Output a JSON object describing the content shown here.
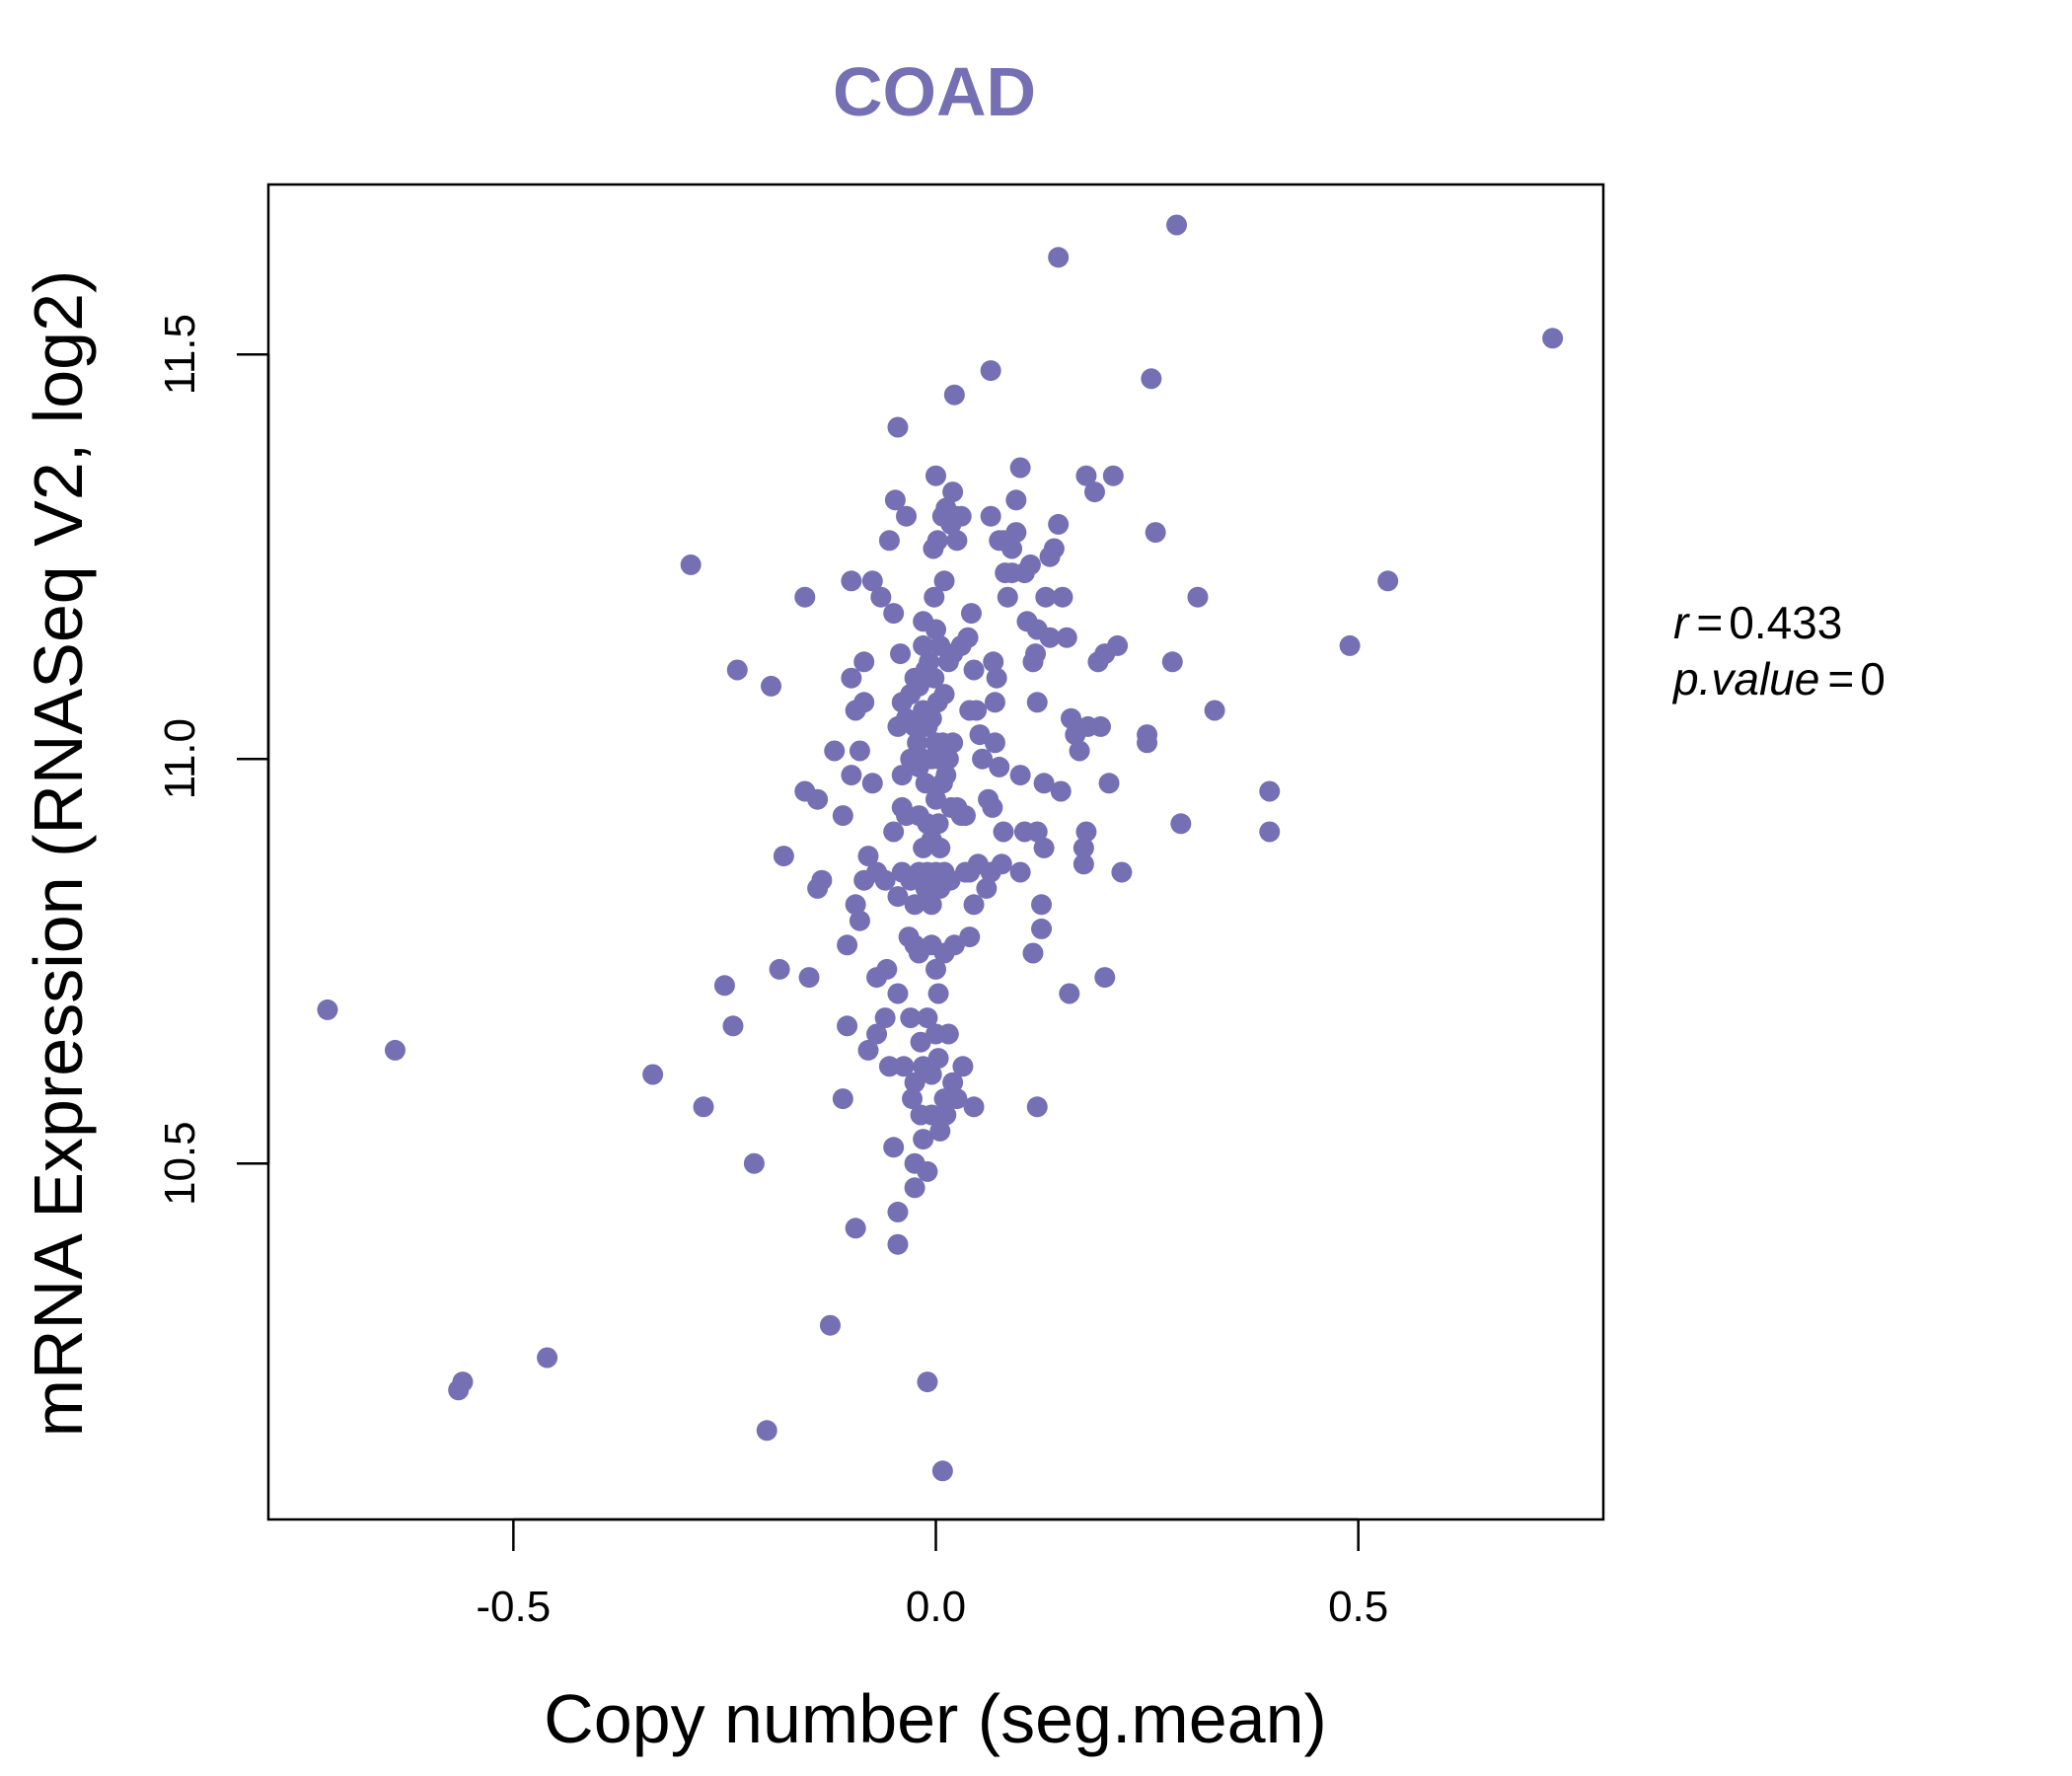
{
  "chart_data": {
    "type": "scatter",
    "title": "COAD",
    "xlabel": "Copy number (seg.mean)",
    "ylabel": "mRNA Expression (RNASeq V2, log2)",
    "xlim": [
      -0.79,
      0.79
    ],
    "ylim": [
      10.06,
      11.71
    ],
    "xticks": [
      -0.5,
      0.0,
      0.5
    ],
    "xtick_labels": [
      "-0.5",
      "0.0",
      "0.5"
    ],
    "yticks": [
      10.5,
      11.0,
      11.5
    ],
    "ytick_labels": [
      "10.5",
      "11.0",
      "11.5"
    ],
    "grid": false,
    "colors": {
      "point": "#7570b3",
      "title": "#7570b3"
    },
    "stats": {
      "r_label": "r",
      "r_value": "0.433",
      "p_label": "p.value",
      "p_value": "0"
    },
    "points": [
      [
        -0.72,
        10.69
      ],
      [
        -0.64,
        10.64
      ],
      [
        -0.565,
        10.22
      ],
      [
        -0.56,
        10.23
      ],
      [
        -0.46,
        10.26
      ],
      [
        -0.335,
        10.61
      ],
      [
        -0.29,
        11.24
      ],
      [
        -0.275,
        10.57
      ],
      [
        -0.25,
        10.72
      ],
      [
        -0.235,
        11.11
      ],
      [
        -0.24,
        10.67
      ],
      [
        -0.215,
        10.5
      ],
      [
        -0.2,
        10.17
      ],
      [
        -0.195,
        11.09
      ],
      [
        -0.18,
        10.88
      ],
      [
        -0.185,
        10.74
      ],
      [
        -0.155,
        11.2
      ],
      [
        -0.155,
        10.96
      ],
      [
        -0.15,
        10.73
      ],
      [
        -0.14,
        10.95
      ],
      [
        -0.14,
        10.84
      ],
      [
        -0.135,
        10.85
      ],
      [
        -0.125,
        10.3
      ],
      [
        -0.12,
        11.01
      ],
      [
        -0.11,
        10.93
      ],
      [
        -0.11,
        10.58
      ],
      [
        -0.105,
        10.77
      ],
      [
        -0.105,
        10.67
      ],
      [
        -0.1,
        11.22
      ],
      [
        -0.1,
        11.1
      ],
      [
        -0.1,
        10.98
      ],
      [
        -0.095,
        11.06
      ],
      [
        -0.095,
        10.82
      ],
      [
        -0.095,
        10.42
      ],
      [
        -0.09,
        11.01
      ],
      [
        -0.09,
        10.8
      ],
      [
        -0.085,
        11.12
      ],
      [
        -0.085,
        11.07
      ],
      [
        -0.085,
        10.85
      ],
      [
        -0.08,
        10.88
      ],
      [
        -0.08,
        10.64
      ],
      [
        -0.075,
        11.22
      ],
      [
        -0.075,
        10.97
      ],
      [
        -0.07,
        10.86
      ],
      [
        -0.07,
        10.73
      ],
      [
        -0.07,
        10.66
      ],
      [
        -0.065,
        11.2
      ],
      [
        -0.06,
        10.85
      ],
      [
        -0.06,
        10.68
      ],
      [
        -0.058,
        10.74
      ],
      [
        -0.055,
        11.27
      ],
      [
        -0.055,
        10.62
      ],
      [
        -0.05,
        11.18
      ],
      [
        -0.05,
        10.91
      ],
      [
        -0.05,
        10.52
      ],
      [
        -0.048,
        11.32
      ],
      [
        -0.045,
        11.41
      ],
      [
        -0.045,
        11.04
      ],
      [
        -0.045,
        10.83
      ],
      [
        -0.045,
        10.71
      ],
      [
        -0.045,
        10.44
      ],
      [
        -0.045,
        10.4
      ],
      [
        -0.042,
        11.13
      ],
      [
        -0.04,
        11.07
      ],
      [
        -0.04,
        10.98
      ],
      [
        -0.04,
        10.94
      ],
      [
        -0.04,
        10.86
      ],
      [
        -0.038,
        10.62
      ],
      [
        -0.035,
        11.3
      ],
      [
        -0.035,
        11.05
      ],
      [
        -0.035,
        10.93
      ],
      [
        -0.032,
        10.78
      ],
      [
        -0.03,
        11.08
      ],
      [
        -0.03,
        11.0
      ],
      [
        -0.03,
        10.85
      ],
      [
        -0.03,
        10.68
      ],
      [
        -0.028,
        10.58
      ],
      [
        -0.025,
        11.1
      ],
      [
        -0.025,
        11.04
      ],
      [
        -0.025,
        10.82
      ],
      [
        -0.025,
        10.77
      ],
      [
        -0.025,
        10.6
      ],
      [
        -0.025,
        10.5
      ],
      [
        -0.025,
        10.47
      ],
      [
        -0.022,
        11.02
      ],
      [
        -0.02,
        11.09
      ],
      [
        -0.02,
        10.99
      ],
      [
        -0.02,
        10.93
      ],
      [
        -0.02,
        10.86
      ],
      [
        -0.02,
        10.76
      ],
      [
        -0.018,
        10.65
      ],
      [
        -0.018,
        10.56
      ],
      [
        -0.015,
        11.17
      ],
      [
        -0.015,
        11.14
      ],
      [
        -0.015,
        11.06
      ],
      [
        -0.015,
        11.0
      ],
      [
        -0.015,
        10.89
      ],
      [
        -0.015,
        10.62
      ],
      [
        -0.015,
        10.53
      ],
      [
        -0.012,
        11.11
      ],
      [
        -0.012,
        10.97
      ],
      [
        -0.012,
        10.84
      ],
      [
        -0.01,
        11.04
      ],
      [
        -0.01,
        10.92
      ],
      [
        -0.01,
        10.86
      ],
      [
        -0.01,
        10.68
      ],
      [
        -0.01,
        10.49
      ],
      [
        -0.01,
        10.23
      ],
      [
        -0.008,
        11.12
      ],
      [
        -0.005,
        11.05
      ],
      [
        -0.005,
        11.0
      ],
      [
        -0.005,
        10.9
      ],
      [
        -0.005,
        10.82
      ],
      [
        -0.005,
        10.77
      ],
      [
        -0.005,
        10.61
      ],
      [
        -0.005,
        10.56
      ],
      [
        -0.003,
        11.26
      ],
      [
        -0.002,
        11.2
      ],
      [
        -0.002,
        11.1
      ],
      [
        0.0,
        11.35
      ],
      [
        0.0,
        11.16
      ],
      [
        0.0,
        11.02
      ],
      [
        0.0,
        10.95
      ],
      [
        0.0,
        10.86
      ],
      [
        0.0,
        10.74
      ],
      [
        0.0,
        10.66
      ],
      [
        0.002,
        11.27
      ],
      [
        0.002,
        11.07
      ],
      [
        0.003,
        11.0
      ],
      [
        0.003,
        10.92
      ],
      [
        0.003,
        10.71
      ],
      [
        0.003,
        10.63
      ],
      [
        0.005,
        11.14
      ],
      [
        0.005,
        10.89
      ],
      [
        0.005,
        10.84
      ],
      [
        0.005,
        10.54
      ],
      [
        0.008,
        11.3
      ],
      [
        0.008,
        11.02
      ],
      [
        0.008,
        10.97
      ],
      [
        0.008,
        10.12
      ],
      [
        0.01,
        11.22
      ],
      [
        0.01,
        11.08
      ],
      [
        0.01,
        10.86
      ],
      [
        0.01,
        10.76
      ],
      [
        0.01,
        10.58
      ],
      [
        0.012,
        11.31
      ],
      [
        0.012,
        10.98
      ],
      [
        0.012,
        10.56
      ],
      [
        0.015,
        11.12
      ],
      [
        0.015,
        11.0
      ],
      [
        0.015,
        10.66
      ],
      [
        0.017,
        10.85
      ],
      [
        0.018,
        11.29
      ],
      [
        0.018,
        10.94
      ],
      [
        0.02,
        11.33
      ],
      [
        0.02,
        11.13
      ],
      [
        0.02,
        11.02
      ],
      [
        0.02,
        10.6
      ],
      [
        0.022,
        11.45
      ],
      [
        0.022,
        10.77
      ],
      [
        0.025,
        11.3
      ],
      [
        0.025,
        11.27
      ],
      [
        0.025,
        10.94
      ],
      [
        0.025,
        10.58
      ],
      [
        0.03,
        11.3
      ],
      [
        0.03,
        11.14
      ],
      [
        0.03,
        10.93
      ],
      [
        0.032,
        10.62
      ],
      [
        0.035,
        10.93
      ],
      [
        0.035,
        10.86
      ],
      [
        0.038,
        11.15
      ],
      [
        0.04,
        11.06
      ],
      [
        0.04,
        10.86
      ],
      [
        0.04,
        10.78
      ],
      [
        0.042,
        11.18
      ],
      [
        0.045,
        11.11
      ],
      [
        0.045,
        10.82
      ],
      [
        0.045,
        10.57
      ],
      [
        0.048,
        11.06
      ],
      [
        0.05,
        10.87
      ],
      [
        0.052,
        11.03
      ],
      [
        0.055,
        11.0
      ],
      [
        0.06,
        10.84
      ],
      [
        0.062,
        10.95
      ],
      [
        0.065,
        11.48
      ],
      [
        0.065,
        11.3
      ],
      [
        0.065,
        10.86
      ],
      [
        0.067,
        10.94
      ],
      [
        0.068,
        11.12
      ],
      [
        0.07,
        11.07
      ],
      [
        0.07,
        11.02
      ],
      [
        0.072,
        11.1
      ],
      [
        0.075,
        11.27
      ],
      [
        0.075,
        10.99
      ],
      [
        0.078,
        10.87
      ],
      [
        0.08,
        11.27
      ],
      [
        0.08,
        10.91
      ],
      [
        0.082,
        11.23
      ],
      [
        0.085,
        11.2
      ],
      [
        0.09,
        11.26
      ],
      [
        0.09,
        11.23
      ],
      [
        0.095,
        11.32
      ],
      [
        0.095,
        11.28
      ],
      [
        0.1,
        11.36
      ],
      [
        0.1,
        10.98
      ],
      [
        0.1,
        10.86
      ],
      [
        0.105,
        11.23
      ],
      [
        0.105,
        10.91
      ],
      [
        0.108,
        11.17
      ],
      [
        0.112,
        11.24
      ],
      [
        0.115,
        10.76
      ],
      [
        0.115,
        11.12
      ],
      [
        0.118,
        11.13
      ],
      [
        0.12,
        10.91
      ],
      [
        0.12,
        11.07
      ],
      [
        0.12,
        11.16
      ],
      [
        0.12,
        10.57
      ],
      [
        0.125,
        10.82
      ],
      [
        0.125,
        10.79
      ],
      [
        0.128,
        10.89
      ],
      [
        0.128,
        10.97
      ],
      [
        0.13,
        11.2
      ],
      [
        0.135,
        11.15
      ],
      [
        0.135,
        11.25
      ],
      [
        0.14,
        11.26
      ],
      [
        0.145,
        11.62
      ],
      [
        0.145,
        11.29
      ],
      [
        0.148,
        10.96
      ],
      [
        0.15,
        11.2
      ],
      [
        0.155,
        11.15
      ],
      [
        0.158,
        10.71
      ],
      [
        0.16,
        11.05
      ],
      [
        0.165,
        11.03
      ],
      [
        0.17,
        11.01
      ],
      [
        0.175,
        10.87
      ],
      [
        0.175,
        10.89
      ],
      [
        0.178,
        10.91
      ],
      [
        0.178,
        11.35
      ],
      [
        0.18,
        11.04
      ],
      [
        0.188,
        11.33
      ],
      [
        0.192,
        11.12
      ],
      [
        0.195,
        11.04
      ],
      [
        0.2,
        10.73
      ],
      [
        0.2,
        11.13
      ],
      [
        0.205,
        10.97
      ],
      [
        0.21,
        11.35
      ],
      [
        0.215,
        11.14
      ],
      [
        0.22,
        10.86
      ],
      [
        0.25,
        11.03
      ],
      [
        0.25,
        11.02
      ],
      [
        0.255,
        11.47
      ],
      [
        0.26,
        11.28
      ],
      [
        0.28,
        11.12
      ],
      [
        0.285,
        11.66
      ],
      [
        0.29,
        10.92
      ],
      [
        0.31,
        11.2
      ],
      [
        0.33,
        11.06
      ],
      [
        0.395,
        10.96
      ],
      [
        0.395,
        10.91
      ],
      [
        0.49,
        11.14
      ],
      [
        0.535,
        11.22
      ],
      [
        0.73,
        11.52
      ]
    ]
  }
}
